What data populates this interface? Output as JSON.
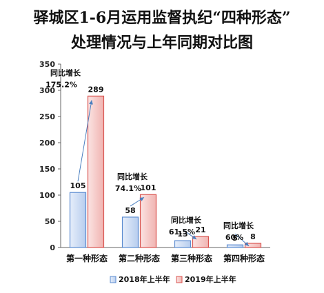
{
  "chart_data": {
    "type": "bar",
    "title_lines": [
      "驿城区1-6月运用监督执纪“四种形态”",
      "处理情况与上年同期对比图"
    ],
    "categories": [
      "第一种形态",
      "第二种形态",
      "第三种形态",
      "第四种形态"
    ],
    "series": [
      {
        "name": "2018年上半年",
        "values": [
          105,
          58,
          13,
          5
        ],
        "color": "#c9d9f0"
      },
      {
        "name": "2019年上半年",
        "values": [
          289,
          101,
          21,
          8
        ],
        "color": "#f4c7c5"
      }
    ],
    "ylim": [
      0,
      350
    ],
    "yticks": [
      0,
      50,
      100,
      150,
      200,
      250,
      300,
      350
    ],
    "grid": false,
    "legend": "bottom",
    "annotations": [
      {
        "label": "同比增长",
        "value": "175.2%"
      },
      {
        "label": "同比增长",
        "value": "74.1%"
      },
      {
        "label": "同比增长",
        "value": "61.5%"
      },
      {
        "label": "同比增长",
        "value": "60%"
      }
    ],
    "colors": {
      "series1_stroke": "#5b8bd0",
      "series2_stroke": "#d9534f",
      "arrow": "#4a7fc0"
    }
  }
}
